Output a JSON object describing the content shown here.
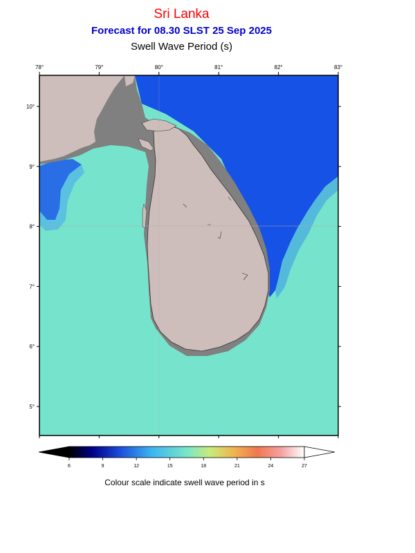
{
  "header": {
    "region": "Sri Lanka",
    "forecast": "Forecast for  08.30 SLST 25 Sep 2025",
    "parameter": "Swell Wave Period (s)"
  },
  "axes": {
    "lon_labels": [
      "78°",
      "79°",
      "80°",
      "81°",
      "82°",
      "83°"
    ],
    "lat_labels": [
      "10°",
      "9°",
      "8°",
      "7°",
      "6°",
      "5°"
    ]
  },
  "colorbar": {
    "tick_labels": [
      "6",
      "9",
      "12",
      "15",
      "18",
      "21",
      "24",
      "27"
    ],
    "min": 6,
    "max": 27,
    "colors": [
      "#000000",
      "#00008b",
      "#1e50dc",
      "#3cb4f0",
      "#78e6c8",
      "#c8eb7a",
      "#f0b450",
      "#f07850",
      "#f5a0a0",
      "#ffffff"
    ]
  },
  "caption": "Colour scale indicate swell wave period in s",
  "colors": {
    "land": "#cdbdbb",
    "shelf": "#808080",
    "sea_short_period": "#78e6cd",
    "sea_long_period": "#1450e6"
  }
}
